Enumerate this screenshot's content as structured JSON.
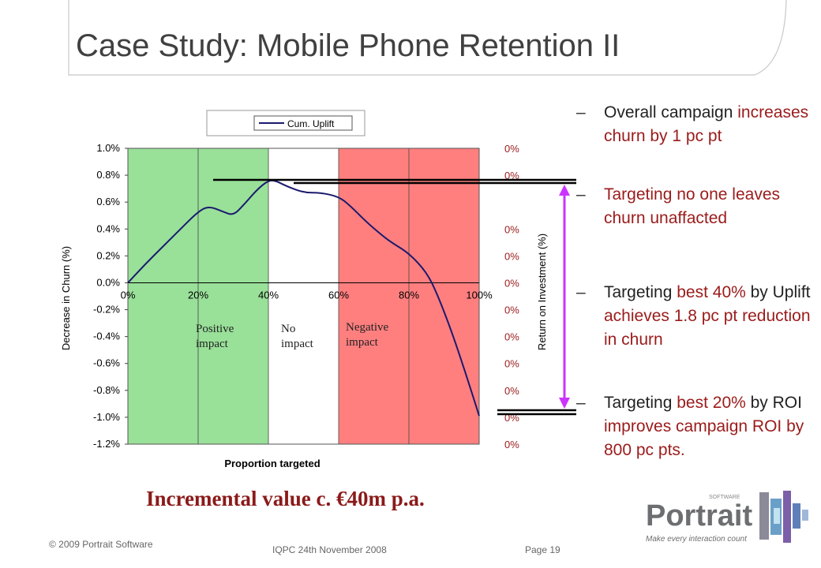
{
  "slide": {
    "title": "Case Study: Mobile Phone Retention II",
    "value_text": "Incremental value c. €40m p.a."
  },
  "regions": {
    "positive": "Positive impact",
    "none": "No impact",
    "negative": "Negative impact",
    "colors": {
      "positive": "#99e099",
      "none": "#ffffff",
      "negative": "#ff7f7f"
    }
  },
  "bullets": [
    {
      "dash": "–",
      "parts": [
        {
          "text": "Overall campaign ",
          "tone": "dark"
        },
        {
          "text": "increases churn by 1 pc pt",
          "tone": "red"
        }
      ]
    },
    {
      "dash": "–",
      "parts": [
        {
          "text": "Targeting no one leaves churn unaffacted",
          "tone": "red"
        }
      ]
    },
    {
      "dash": "–",
      "parts": [
        {
          "text": "Targeting ",
          "tone": "dark"
        },
        {
          "text": "best 40%",
          "tone": "red"
        },
        {
          "text": " by Uplift ",
          "tone": "dark"
        },
        {
          "text": "achieves 1.8 pc pt reduction in churn",
          "tone": "red"
        }
      ]
    },
    {
      "dash": "–",
      "parts": [
        {
          "text": "Targeting ",
          "tone": "dark"
        },
        {
          "text": "best 20%",
          "tone": "red"
        },
        {
          "text": " by ROI ",
          "tone": "dark"
        },
        {
          "text": "improves campaign ROI by 800 pc pts.",
          "tone": "red"
        }
      ]
    }
  ],
  "footer": {
    "copyright": "© 2009 Portrait Software",
    "event": "IQPC 24th November 2008",
    "page": "Page 19"
  },
  "logo": {
    "name": "Portrait",
    "superscript": "SOFTWARE",
    "tagline": "Make every interaction count"
  },
  "chart_data": {
    "type": "line",
    "legend": "Cum. Uplift",
    "xlabel": "Proportion targeted",
    "ylabel": "Decrease in Churn (%)",
    "y2label": "Return on Investment (%)",
    "x_ticks": [
      "0%",
      "20%",
      "40%",
      "60%",
      "80%",
      "100%"
    ],
    "y_ticks": [
      "1.0%",
      "0.8%",
      "0.6%",
      "0.4%",
      "0.2%",
      "0.0%",
      "-0.2%",
      "-0.4%",
      "-0.6%",
      "-0.8%",
      "-1.0%",
      "-1.2%"
    ],
    "y2_ticks": [
      "0%",
      "0%",
      "",
      "0%",
      "0%",
      "0%",
      "0%",
      "0%",
      "0%",
      "0%",
      "0%",
      "0%"
    ],
    "ylim": [
      -1.2,
      1.0
    ],
    "xlim": [
      0,
      100
    ],
    "grid": true,
    "series": [
      {
        "name": "Cum. Uplift",
        "color": "#1a1a6e",
        "x": [
          0,
          5,
          10,
          15,
          20,
          23,
          27,
          30,
          33,
          37,
          40,
          42,
          45,
          50,
          55,
          60,
          63,
          68,
          72,
          75,
          80,
          85,
          88,
          92,
          96,
          100
        ],
        "y": [
          0.0,
          0.14,
          0.27,
          0.4,
          0.53,
          0.57,
          0.53,
          0.5,
          0.58,
          0.7,
          0.76,
          0.76,
          0.72,
          0.67,
          0.67,
          0.64,
          0.58,
          0.45,
          0.36,
          0.3,
          0.22,
          0.08,
          -0.08,
          -0.35,
          -0.66,
          -0.99
        ]
      }
    ]
  }
}
